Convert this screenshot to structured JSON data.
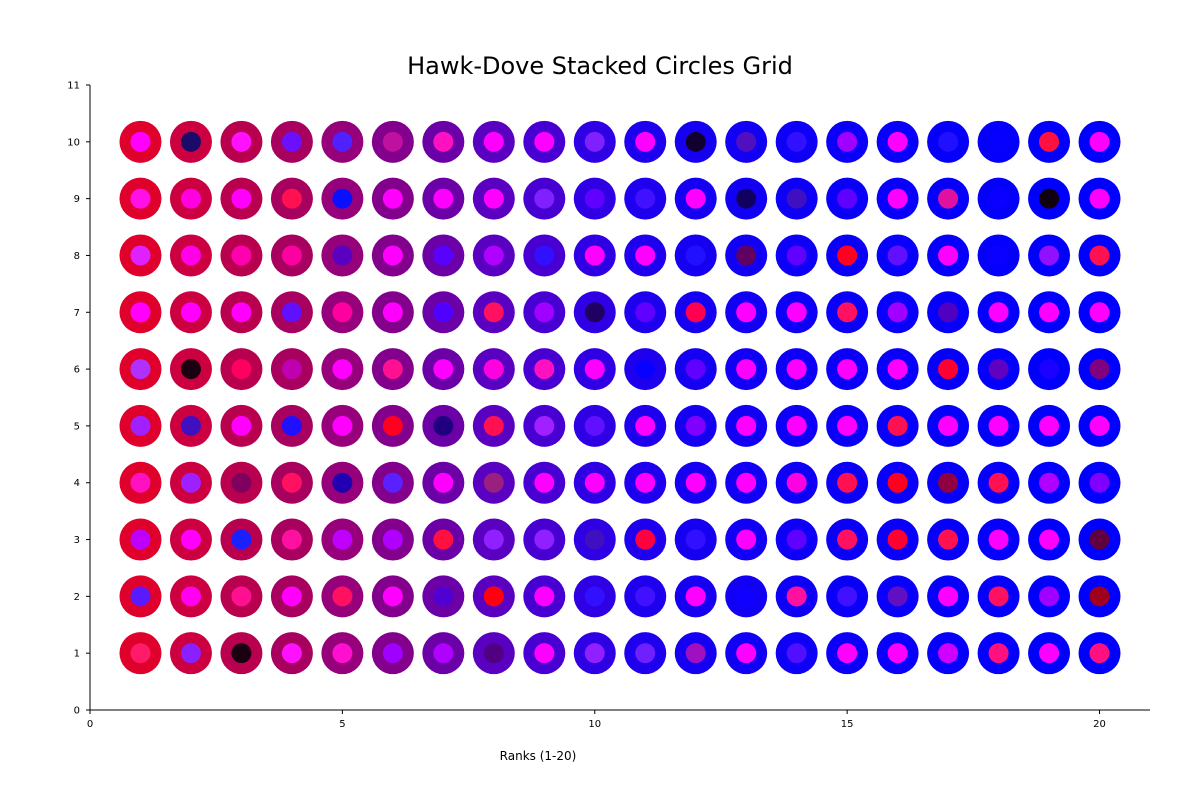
{
  "chart_data": {
    "type": "scatter",
    "title": "Hawk-Dove Stacked Circles Grid",
    "xlabel": "Ranks (1-20)",
    "ylabel": "",
    "xlim": [
      0,
      21
    ],
    "ylim": [
      0,
      11
    ],
    "x_ticks": [
      "0",
      "5",
      "10",
      "15",
      "20"
    ],
    "y_ticks": [
      "0",
      "1",
      "2",
      "3",
      "4",
      "5",
      "6",
      "7",
      "8",
      "9",
      "10",
      "11"
    ],
    "grid": false,
    "legend": "none",
    "columns": [
      1,
      2,
      3,
      4,
      5,
      6,
      7,
      8,
      9,
      10,
      11,
      12,
      13,
      14,
      15,
      16,
      17,
      18,
      19,
      20
    ],
    "rows": [
      1,
      2,
      3,
      4,
      5,
      6,
      7,
      8,
      9,
      10
    ],
    "outer_colors": [
      "#e0002c",
      "#cc0040",
      "#b8004f",
      "#a8005e",
      "#96007a",
      "#82008c",
      "#6a00a6",
      "#5a00c0",
      "#4800d2",
      "#3000e4",
      "#1f00ee",
      "#1600f2",
      "#1200f4",
      "#0e00f6",
      "#0a00f8",
      "#0800fa",
      "#0600fb",
      "#0400fc",
      "#0200fd",
      "#0000ff"
    ],
    "inner_colors": [
      [
        "#ff1a6a",
        "#5a1aff",
        "#c000ff",
        "#ff10c0",
        "#a020ff",
        "#b030ff",
        "#ff00ff",
        "#e020ff",
        "#ff10e8",
        "#ff00ff"
      ],
      [
        "#8a20ff",
        "#ff00f0",
        "#ff00ff",
        "#9f20ff",
        "#4010c0",
        "#1a0010",
        "#ff00ff",
        "#ff00e8",
        "#ff00e0",
        "#1a0a6a"
      ],
      [
        "#1a0010",
        "#ff1090",
        "#1a20ff",
        "#800060",
        "#ff00ff",
        "#ff0060",
        "#ff00ff",
        "#ff00b0",
        "#ff00ff",
        "#ff10ff"
      ],
      [
        "#ff10ff",
        "#ff00ff",
        "#ff10a0",
        "#ff1060",
        "#2010ff",
        "#c000b0",
        "#6010ff",
        "#ff00a0",
        "#ff1050",
        "#6a10ff"
      ],
      [
        "#ff10d0",
        "#ff1060",
        "#c000ff",
        "#2000b0",
        "#ff00ff",
        "#ff00ff",
        "#ff00a0",
        "#5a00c0",
        "#0a10ff",
        "#5020ff"
      ],
      [
        "#a000ff",
        "#ff00ff",
        "#b000ff",
        "#5a20ff",
        "#ff0020",
        "#ff1090",
        "#ff00ff",
        "#ff00ff",
        "#ff00ff",
        "#c010a0"
      ],
      [
        "#b000ff",
        "#5000d0",
        "#ff1040",
        "#ff00ff",
        "#200080",
        "#ff00ff",
        "#5000ff",
        "#5a00ff",
        "#ff00ff",
        "#ff10c0"
      ],
      [
        "#500080",
        "#ff0010",
        "#9020ff",
        "#9a2080",
        "#ff1050",
        "#ff00e0",
        "#ff1060",
        "#b000ff",
        "#ff00ff",
        "#ff00ff"
      ],
      [
        "#ff00ff",
        "#ff00ff",
        "#9020ff",
        "#ff00ff",
        "#a020ff",
        "#ff10c0",
        "#a000ff",
        "#3010ff",
        "#8020ff",
        "#ff00ff"
      ],
      [
        "#9020ff",
        "#3010ff",
        "#4010c0",
        "#ff00ff",
        "#6010ff",
        "#ff00ff",
        "#200060",
        "#ff00ff",
        "#6000ff",
        "#8020ff"
      ],
      [
        "#7020ff",
        "#4010ff",
        "#ff0040",
        "#ff00ff",
        "#ff00ff",
        "#0a00ff",
        "#6000ff",
        "#ff00ff",
        "#4010ff",
        "#ff00ff"
      ],
      [
        "#a010c0",
        "#ff00ff",
        "#3010ff",
        "#ff00ff",
        "#8000ff",
        "#6000ff",
        "#ff0050",
        "#2010ff",
        "#ff00ff",
        "#100030"
      ],
      [
        "#ff00ff",
        "#1000ff",
        "#ff00ff",
        "#ff00ff",
        "#ff00ff",
        "#ff00ff",
        "#ff00ff",
        "#600060",
        "#100060",
        "#5010c0"
      ],
      [
        "#5010ff",
        "#ff10a0",
        "#6000ff",
        "#ff00e0",
        "#ff00ff",
        "#ff00ff",
        "#ff00ff",
        "#6000ff",
        "#4010c0",
        "#3010ff"
      ],
      [
        "#ff00ff",
        "#4010ff",
        "#ff1060",
        "#ff1050",
        "#ff00ff",
        "#ff00ff",
        "#ff1060",
        "#ff0020",
        "#6000ff",
        "#a000ff"
      ],
      [
        "#ff00ff",
        "#6010c0",
        "#ff0030",
        "#ff0020",
        "#ff1050",
        "#ff00ff",
        "#a000ff",
        "#6010ff",
        "#ff00ff",
        "#ff00ff"
      ],
      [
        "#d000ff",
        "#ff00ff",
        "#ff1050",
        "#900040",
        "#ff00ff",
        "#ff0030",
        "#5000c0",
        "#ff00ff",
        "#e010a0",
        "#2010ff"
      ],
      [
        "#ff1080",
        "#ff1060",
        "#ff00ff",
        "#ff1050",
        "#ff00ff",
        "#6000c0",
        "#ff00ff",
        "#0a00ff",
        "#0a00ff",
        "#0600ff"
      ],
      [
        "#ff00ff",
        "#a000ff",
        "#ff00ff",
        "#b000ff",
        "#ff00ff",
        "#1a00ff",
        "#ff00ff",
        "#9010ff",
        "#100010",
        "#ff1040"
      ],
      [
        "#ff1080",
        "#a00020",
        "#600040",
        "#8000ff",
        "#ff00ff",
        "#800080",
        "#ff00ff",
        "#ff1050",
        "#ff00ff",
        "#ff00ff"
      ]
    ]
  }
}
